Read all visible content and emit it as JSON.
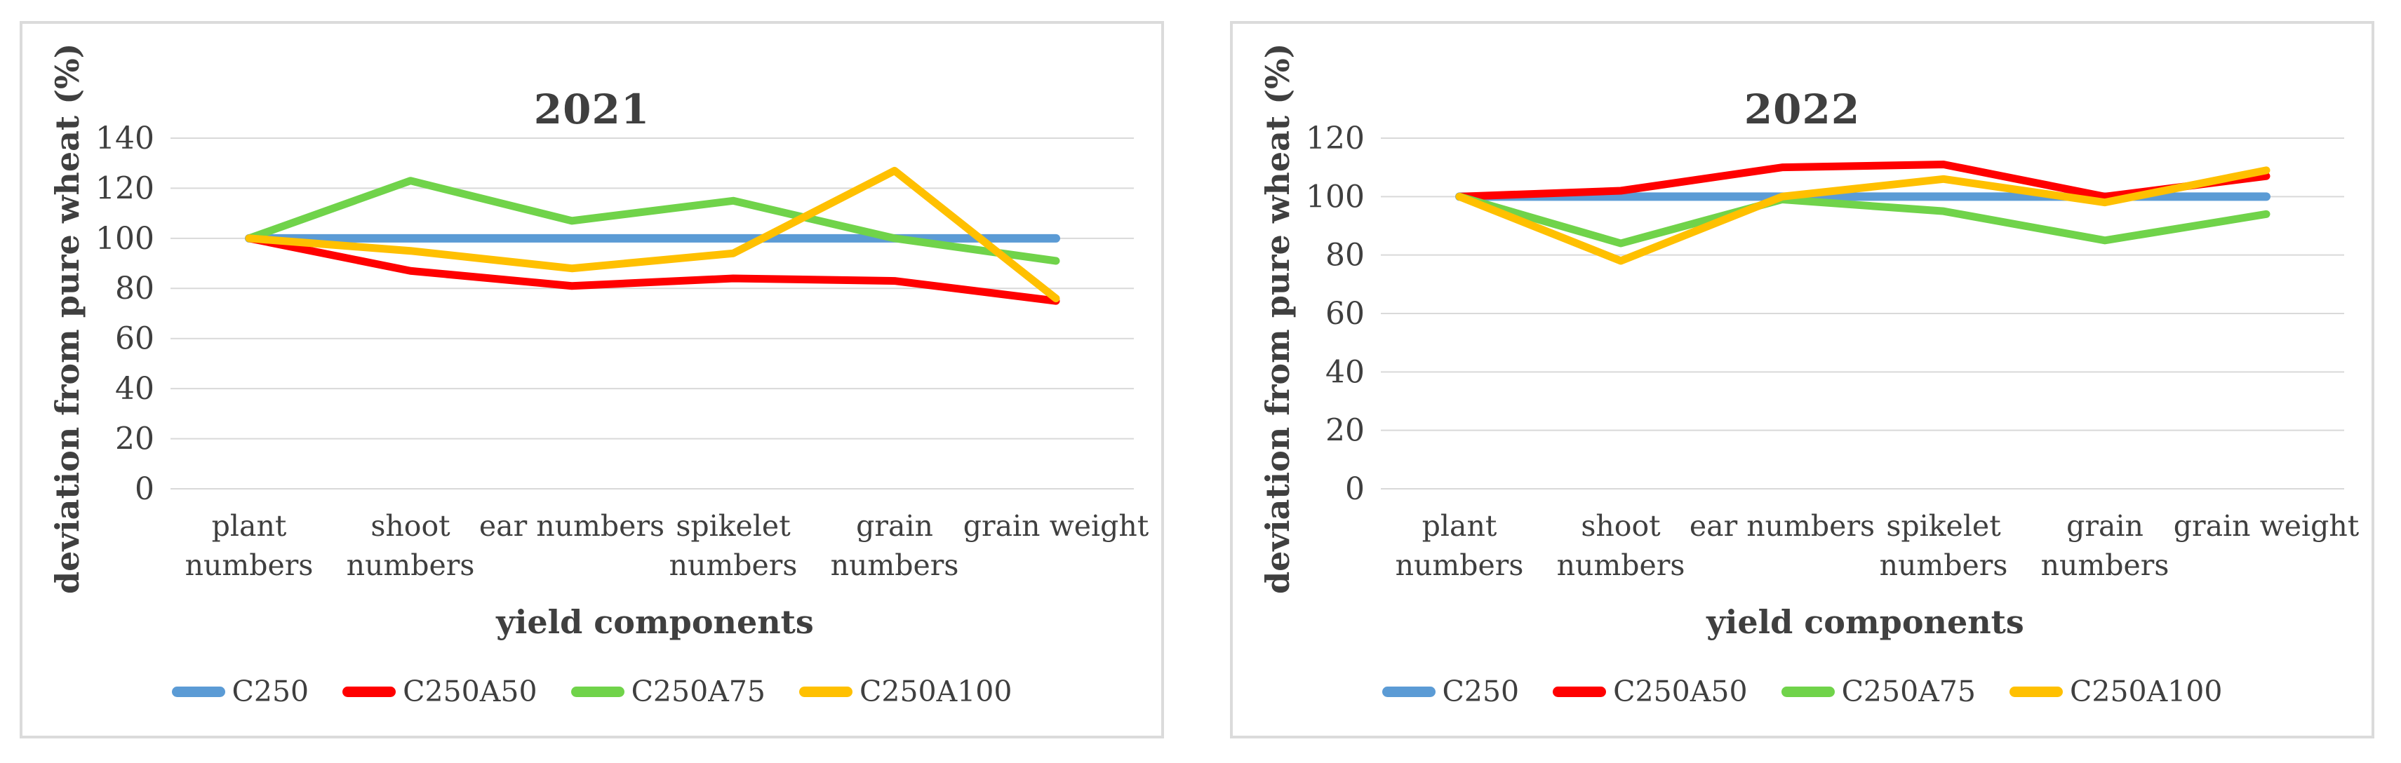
{
  "page": {
    "background": "#FFFFFF",
    "panel_border_color": "#DBDBDB",
    "gridline_color": "#D9D9D9",
    "text_color": "#3F3F3F"
  },
  "chart_data": [
    {
      "type": "line",
      "title": "2021",
      "x_label": "yield components",
      "y_label": "deviation from pure wheat (%)",
      "categories": [
        "plant numbers",
        "shoot numbers",
        "ear numbers",
        "spikelet numbers",
        "grain numbers",
        "grain weight"
      ],
      "category_lines": [
        [
          "plant",
          "numbers"
        ],
        [
          "shoot",
          "numbers"
        ],
        [
          "ear numbers"
        ],
        [
          "spikelet",
          "numbers"
        ],
        [
          "grain",
          "numbers"
        ],
        [
          "grain weight"
        ]
      ],
      "y_ticks": [
        0,
        20,
        40,
        60,
        80,
        100,
        120,
        140
      ],
      "ylim": [
        0,
        140
      ],
      "grid": true,
      "legend_position": "bottom",
      "series": [
        {
          "name": "C250",
          "color": "#5B9BD5",
          "values": [
            100,
            100,
            100,
            100,
            100,
            100
          ]
        },
        {
          "name": "C250A50",
          "color": "#FF0000",
          "values": [
            100,
            87,
            81,
            84,
            83,
            75
          ]
        },
        {
          "name": "C250A75",
          "color": "#70D34A",
          "values": [
            100,
            123,
            107,
            115,
            100,
            91
          ]
        },
        {
          "name": "C250A100",
          "color": "#FFC000",
          "values": [
            100,
            95,
            88,
            94,
            127,
            76
          ]
        }
      ]
    },
    {
      "type": "line",
      "title": "2022",
      "x_label": "yield components",
      "y_label": "deviation from pure wheat (%)",
      "categories": [
        "plant numbers",
        "shoot numbers",
        "ear numbers",
        "spikelet numbers",
        "grain numbers",
        "grain weight"
      ],
      "category_lines": [
        [
          "plant",
          "numbers"
        ],
        [
          "shoot",
          "numbers"
        ],
        [
          "ear numbers"
        ],
        [
          "spikelet",
          "numbers"
        ],
        [
          "grain",
          "numbers"
        ],
        [
          "grain weight"
        ]
      ],
      "y_ticks": [
        0,
        20,
        40,
        60,
        80,
        100,
        120
      ],
      "ylim": [
        0,
        120
      ],
      "grid": true,
      "legend_position": "bottom",
      "series": [
        {
          "name": "C250",
          "color": "#5B9BD5",
          "values": [
            100,
            100,
            100,
            100,
            100,
            100
          ]
        },
        {
          "name": "C250A50",
          "color": "#FF0000",
          "values": [
            100,
            102,
            110,
            111,
            100,
            107
          ]
        },
        {
          "name": "C250A75",
          "color": "#70D34A",
          "values": [
            100,
            84,
            99,
            95,
            85,
            94
          ]
        },
        {
          "name": "C250A100",
          "color": "#FFC000",
          "values": [
            100,
            78,
            100,
            106,
            98,
            109
          ]
        }
      ]
    }
  ]
}
